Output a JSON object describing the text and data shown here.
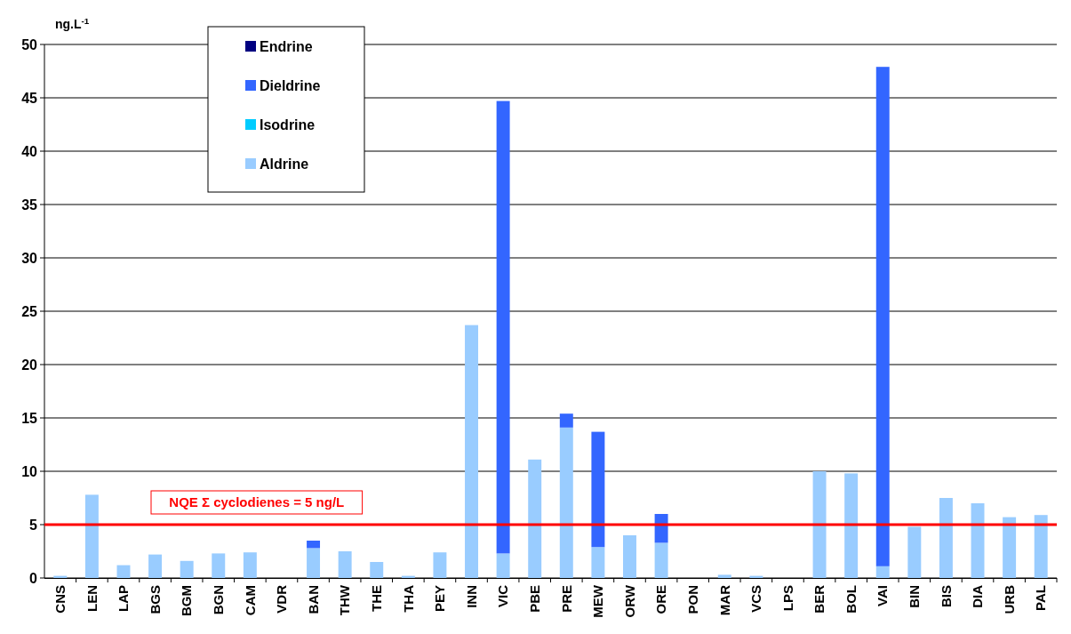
{
  "chart_data": {
    "type": "bar",
    "stacked": true,
    "ylabel": "ng.L$^{-1}$",
    "categories": [
      "CNS",
      "LEN",
      "LAP",
      "BGS",
      "BGM",
      "BGN",
      "CAM",
      "VDR",
      "BAN",
      "THW",
      "THE",
      "THA",
      "PEY",
      "INN",
      "VIC",
      "PBE",
      "PRE",
      "MEW",
      "ORW",
      "ORE",
      "PON",
      "MAR",
      "VCS",
      "LPS",
      "BER",
      "BOL",
      "VAI",
      "BIN",
      "BIS",
      "DIA",
      "URB",
      "PAL"
    ],
    "series": [
      {
        "name": "Aldrine",
        "color": "#99ccff",
        "values": [
          0.2,
          7.8,
          1.2,
          2.2,
          1.6,
          2.3,
          2.4,
          0,
          2.8,
          2.5,
          1.5,
          0.2,
          2.4,
          23.7,
          2.3,
          11.1,
          14.1,
          2.9,
          4.0,
          3.3,
          0,
          0.3,
          0.2,
          0,
          10.0,
          9.8,
          1.1,
          4.8,
          7.5,
          7.0,
          5.7,
          5.9
        ]
      },
      {
        "name": "Isodrine",
        "color": "#00ccff",
        "values": [
          0,
          0,
          0,
          0,
          0,
          0,
          0,
          0,
          0,
          0,
          0,
          0,
          0,
          0,
          0,
          0,
          0,
          0,
          0,
          0,
          0,
          0,
          0,
          0,
          0,
          0,
          0,
          0,
          0,
          0,
          0,
          0
        ]
      },
      {
        "name": "Dieldrine",
        "color": "#3366ff",
        "values": [
          0,
          0,
          0,
          0,
          0,
          0,
          0,
          0,
          0.7,
          0,
          0,
          0,
          0,
          0,
          42.4,
          0,
          1.3,
          10.8,
          0,
          2.7,
          0,
          0,
          0,
          0,
          0,
          0,
          46.8,
          0,
          0,
          0,
          0,
          0
        ]
      },
      {
        "name": "Endrine",
        "color": "#000080",
        "values": [
          0,
          0,
          0,
          0,
          0,
          0,
          0,
          0,
          0,
          0,
          0,
          0,
          0,
          0,
          0,
          0,
          0,
          0,
          0,
          0,
          0,
          0,
          0,
          0,
          0,
          0,
          0,
          0,
          0,
          0,
          0,
          0
        ]
      }
    ],
    "ylim": [
      0,
      50
    ],
    "yticks": [
      0,
      5,
      10,
      15,
      20,
      25,
      30,
      35,
      40,
      45,
      50
    ],
    "grid": "y",
    "legend": "top left",
    "ref_lines": [
      {
        "axis": "y",
        "value": 5,
        "label": "NQE Σ cyclodienes = 5 ng/L",
        "color": "#ff0000"
      }
    ]
  }
}
